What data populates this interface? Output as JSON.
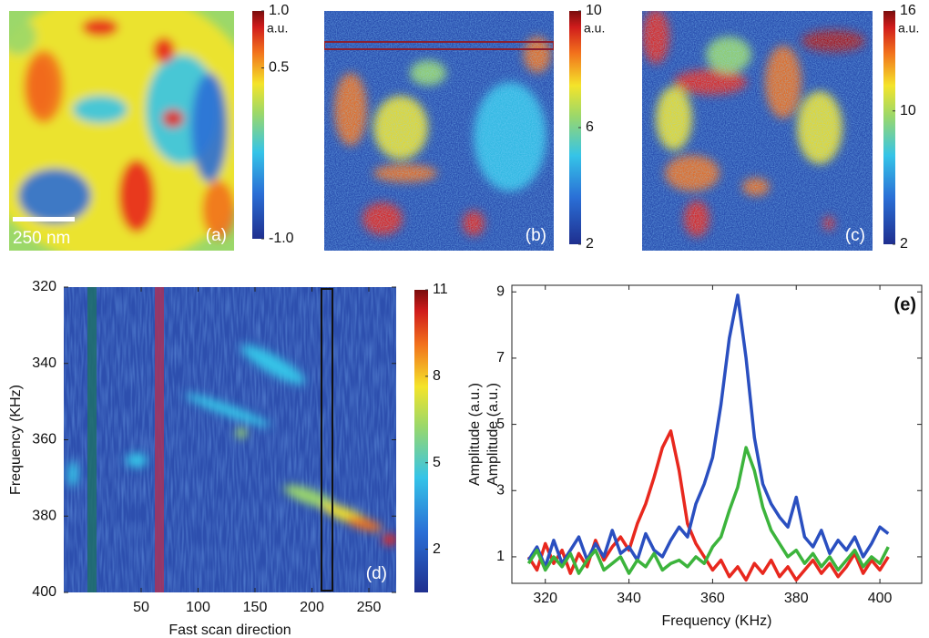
{
  "chart_data": [
    {
      "type": "image",
      "label": "(a)",
      "scale_bar": "250 nm",
      "colorbar_unit": "a.u.",
      "clim": [
        -1,
        1
      ],
      "cticks": [
        {
          "value": 1,
          "label": "1.0"
        },
        0.5,
        {
          "value": -1,
          "label": "-1.0"
        }
      ]
    },
    {
      "type": "image",
      "label": "(b)",
      "colorbar_unit": "a.u.",
      "clim": [
        2,
        10
      ],
      "cticks": [
        10,
        6,
        2
      ]
    },
    {
      "type": "image",
      "label": "(c)",
      "colorbar_unit": "a.u.",
      "clim": [
        2,
        16
      ],
      "cticks": [
        16,
        10,
        2
      ]
    },
    {
      "type": "heatmap",
      "label": "(d)",
      "xlabel": "Fast scan direction",
      "ylabel": "Frequency (KHz)",
      "xlim": [
        -18,
        274
      ],
      "xticks": [
        50,
        100,
        150,
        200,
        250
      ],
      "ylim": [
        400,
        320
      ],
      "yticks": [
        320,
        340,
        360,
        380,
        400
      ],
      "clim": [
        0.5,
        11
      ],
      "cticks": [
        11,
        8,
        5,
        2
      ]
    },
    {
      "type": "line",
      "label": "(e)",
      "xlabel": "Frequency (KHz)",
      "ylabels": [
        "Amplitude (a.u.)",
        "Amplitude (a.u.)"
      ],
      "xlim": [
        312,
        410
      ],
      "xticks": [
        320,
        340,
        360,
        380,
        400
      ],
      "ylim": [
        0.2,
        9.2
      ],
      "yticks": [
        1,
        3,
        5,
        7,
        9
      ],
      "x": [
        316,
        318,
        320,
        322,
        324,
        326,
        328,
        330,
        332,
        334,
        336,
        338,
        340,
        342,
        344,
        346,
        348,
        350,
        352,
        354,
        356,
        358,
        360,
        362,
        364,
        366,
        368,
        370,
        372,
        374,
        376,
        378,
        380,
        382,
        384,
        386,
        388,
        390,
        392,
        394,
        396,
        398,
        400,
        402
      ],
      "series": [
        {
          "color": "#e8281e",
          "values": [
            1.0,
            0.6,
            1.4,
            0.8,
            1.2,
            0.5,
            1.1,
            0.7,
            1.5,
            0.9,
            1.3,
            1.6,
            1.2,
            2.0,
            2.6,
            3.4,
            4.3,
            4.8,
            3.6,
            2.0,
            1.4,
            1.0,
            0.6,
            0.9,
            0.4,
            0.7,
            0.3,
            0.8,
            0.5,
            0.9,
            0.4,
            0.7,
            0.3,
            0.6,
            0.9,
            0.5,
            0.8,
            0.4,
            0.7,
            1.1,
            0.5,
            0.9,
            0.6,
            1.0
          ]
        },
        {
          "color": "#2a4fc0",
          "values": [
            0.9,
            1.3,
            0.7,
            1.5,
            0.8,
            1.2,
            1.6,
            0.9,
            1.4,
            1.0,
            1.8,
            1.1,
            1.3,
            0.9,
            1.7,
            1.2,
            1.0,
            1.5,
            1.9,
            1.6,
            2.6,
            3.2,
            4.0,
            5.6,
            7.6,
            8.9,
            7.0,
            4.6,
            3.2,
            2.6,
            2.2,
            1.9,
            2.8,
            1.6,
            1.3,
            1.8,
            1.1,
            1.5,
            1.2,
            1.6,
            1.0,
            1.4,
            1.9,
            1.7
          ]
        },
        {
          "color": "#3cb43c",
          "values": [
            0.8,
            1.2,
            0.6,
            1.0,
            0.7,
            1.1,
            0.5,
            0.9,
            1.2,
            0.6,
            0.8,
            1.0,
            0.5,
            0.9,
            0.7,
            1.1,
            0.6,
            0.8,
            0.9,
            0.7,
            1.0,
            0.8,
            1.3,
            1.6,
            2.4,
            3.1,
            4.3,
            3.6,
            2.5,
            1.8,
            1.4,
            1.0,
            1.2,
            0.8,
            1.1,
            0.7,
            1.0,
            0.6,
            0.9,
            1.2,
            0.7,
            1.0,
            0.8,
            1.3
          ]
        }
      ]
    }
  ]
}
